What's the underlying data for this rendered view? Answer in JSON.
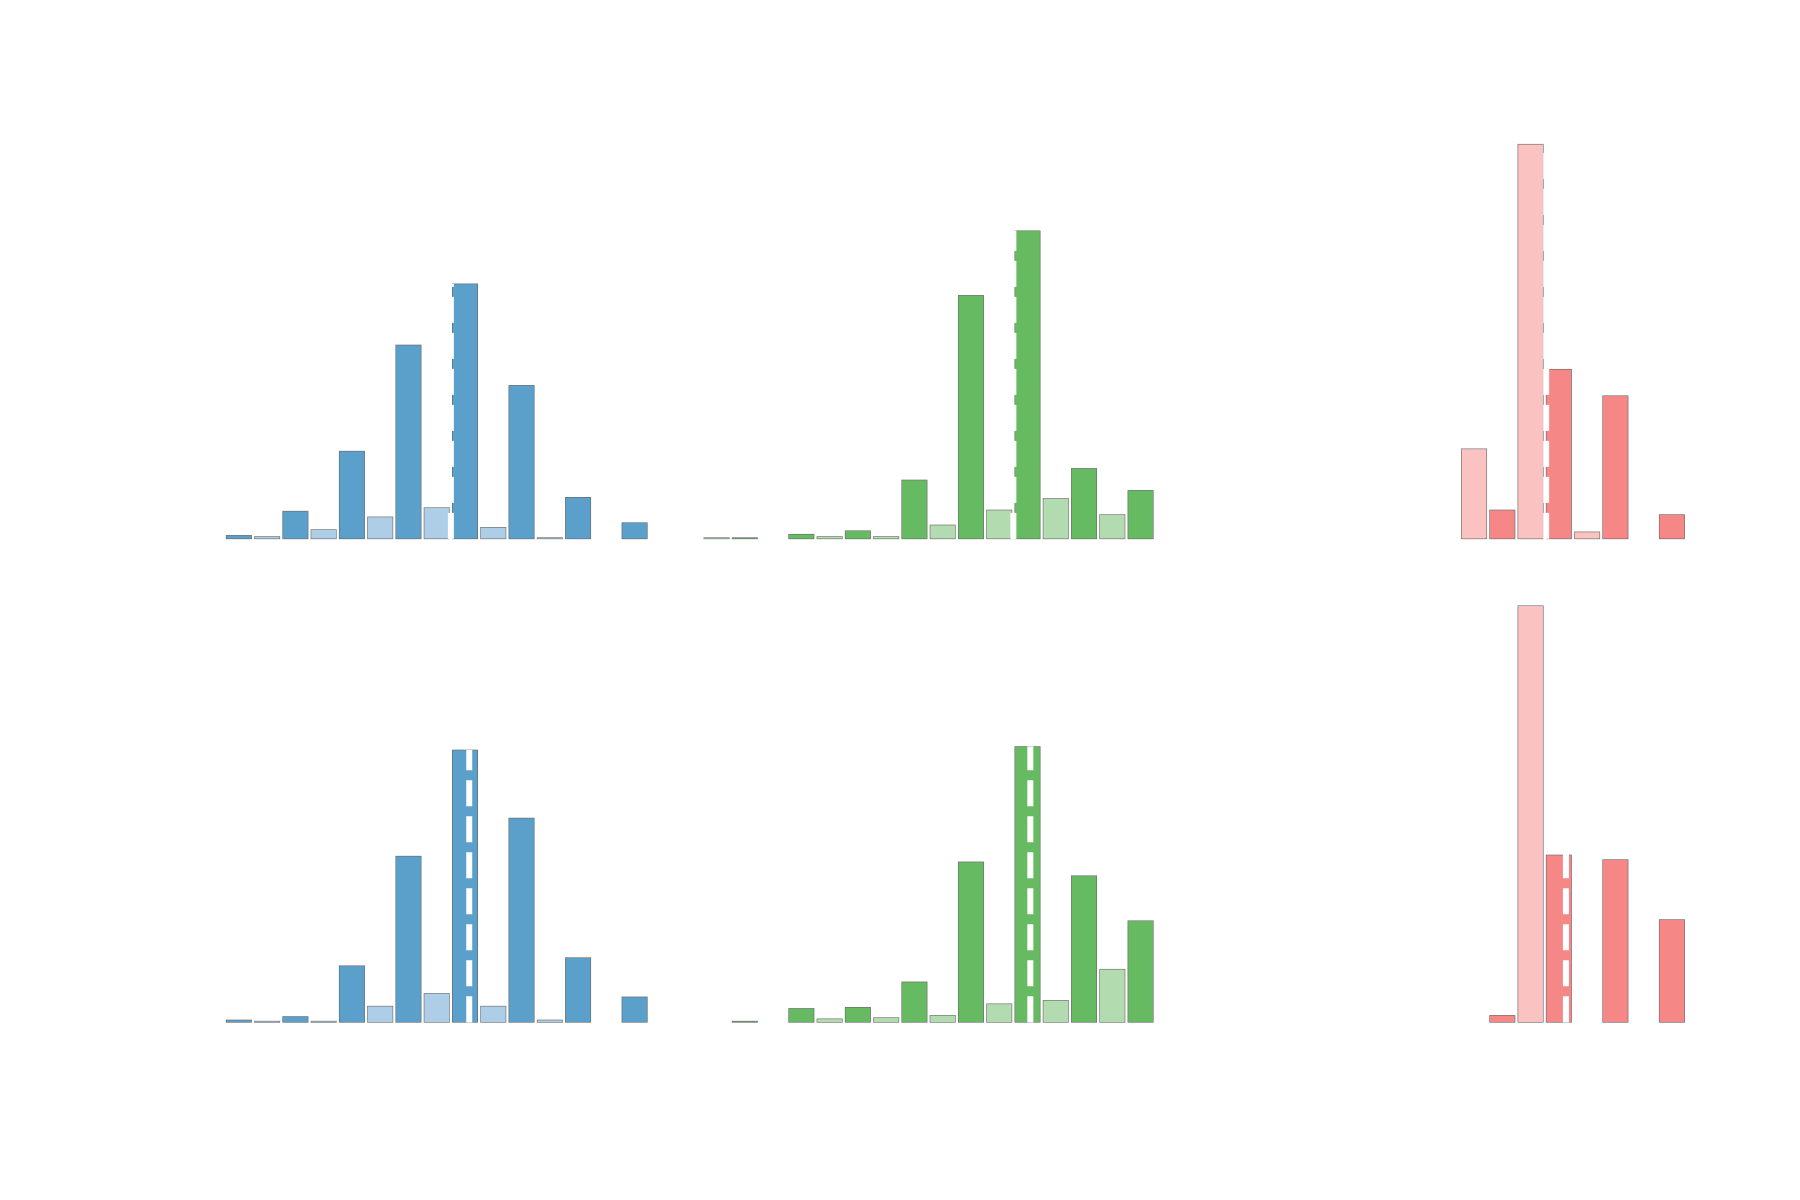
{
  "chart_data": [
    {
      "type": "bar",
      "ylim": [
        0,
        400
      ],
      "marker": 7.5,
      "values": [
        3,
        2,
        24,
        8,
        76,
        19,
        168,
        27,
        221,
        10,
        133,
        1,
        36,
        0,
        14
      ],
      "colors": [
        "#5b9fcb",
        "#aecde6",
        "#5b9fcb",
        "#aecde6",
        "#5b9fcb",
        "#aecde6",
        "#5b9fcb",
        "#aecde6",
        "#5b9fcb",
        "#aecde6",
        "#5b9fcb",
        "#aecde6",
        "#5b9fcb",
        "#aecde6",
        "#5b9fcb"
      ]
    },
    {
      "type": "bar",
      "ylim": [
        0,
        400
      ],
      "marker": 10.5,
      "values": [
        1,
        1,
        0,
        4,
        2,
        7,
        2,
        51,
        12,
        211,
        25,
        267,
        35,
        61,
        21,
        42
      ],
      "colors": [
        "#b2dcaf",
        "#66bb62",
        "#b2dcaf",
        "#66bb62",
        "#b2dcaf",
        "#66bb62",
        "#b2dcaf",
        "#66bb62",
        "#b2dcaf",
        "#66bb62",
        "#b2dcaf",
        "#66bb62",
        "#b2dcaf",
        "#66bb62",
        "#b2dcaf",
        "#66bb62"
      ]
    },
    {
      "type": "bar",
      "ylim": [
        0,
        400
      ],
      "marker": 9.55,
      "values": [
        0,
        0,
        0,
        0,
        0,
        0,
        0,
        78,
        25,
        342,
        147,
        6,
        124,
        0,
        21
      ],
      "colors": [
        "#f58787",
        "#fbc2c2",
        "#f58787",
        "#fbc2c2",
        "#f58787",
        "#fbc2c2",
        "#f58787",
        "#fbc2c2",
        "#f58787",
        "#fbc2c2",
        "#f58787",
        "#fbc2c2",
        "#f58787",
        "#fbc2c2",
        "#f58787"
      ]
    },
    {
      "type": "bar",
      "ylim": [
        0,
        400
      ],
      "marker": 8.15,
      "values": [
        2,
        1,
        5,
        1,
        49,
        14,
        144,
        25,
        236,
        14,
        177,
        2,
        56,
        0,
        22
      ],
      "colors": [
        "#5b9fcb",
        "#aecde6",
        "#5b9fcb",
        "#aecde6",
        "#5b9fcb",
        "#aecde6",
        "#5b9fcb",
        "#aecde6",
        "#5b9fcb",
        "#aecde6",
        "#5b9fcb",
        "#aecde6",
        "#5b9fcb",
        "#aecde6",
        "#5b9fcb"
      ]
    },
    {
      "type": "bar",
      "ylim": [
        0,
        400
      ],
      "marker": 11.1,
      "values": [
        0,
        1,
        0,
        12,
        3,
        13,
        4,
        35,
        6,
        139,
        16,
        239,
        19,
        127,
        46,
        88
      ],
      "colors": [
        "#b2dcaf",
        "#66bb62",
        "#b2dcaf",
        "#66bb62",
        "#b2dcaf",
        "#66bb62",
        "#b2dcaf",
        "#66bb62",
        "#b2dcaf",
        "#66bb62",
        "#b2dcaf",
        "#66bb62",
        "#b2dcaf",
        "#66bb62",
        "#b2dcaf",
        "#66bb62"
      ]
    },
    {
      "type": "bar",
      "ylim": [
        0,
        400
      ],
      "marker": 10.25,
      "values": [
        0,
        0,
        0,
        0,
        0,
        0,
        0,
        0,
        6,
        361,
        145,
        0,
        141,
        0,
        89
      ],
      "colors": [
        "#f58787",
        "#fbc2c2",
        "#f58787",
        "#fbc2c2",
        "#f58787",
        "#fbc2c2",
        "#f58787",
        "#fbc2c2",
        "#f58787",
        "#fbc2c2",
        "#f58787",
        "#fbc2c2",
        "#f58787",
        "#fbc2c2",
        "#f58787"
      ]
    }
  ]
}
